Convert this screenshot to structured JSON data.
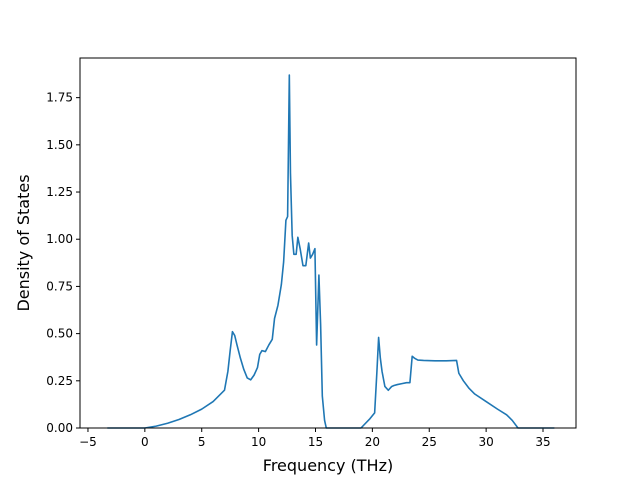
{
  "chart_data": {
    "type": "line",
    "xlabel": "Frequency (THz)",
    "ylabel": "Density of States",
    "xlim": [
      -5.7,
      37.9
    ],
    "ylim": [
      0,
      1.96
    ],
    "x_ticks": [
      -5,
      0,
      5,
      10,
      15,
      20,
      25,
      30,
      35
    ],
    "x_tick_labels": [
      "−5",
      "0",
      "5",
      "10",
      "15",
      "20",
      "25",
      "30",
      "35"
    ],
    "y_ticks": [
      0.0,
      0.25,
      0.5,
      0.75,
      1.0,
      1.25,
      1.5,
      1.75
    ],
    "y_tick_labels": [
      "0.00",
      "0.25",
      "0.50",
      "0.75",
      "1.00",
      "1.25",
      "1.50",
      "1.75"
    ],
    "grid": false,
    "line_color": "#1f77b4",
    "series": [
      {
        "x": [
          -3.3,
          0.0,
          1.0,
          2.0,
          3.0,
          4.0,
          5.0,
          6.0,
          7.0,
          7.3,
          7.5,
          7.7,
          7.9,
          8.1,
          8.4,
          8.7,
          9.0,
          9.3,
          9.6,
          9.9,
          10.1,
          10.3,
          10.6,
          10.9,
          11.2,
          11.4,
          11.7,
          12.0,
          12.2,
          12.4,
          12.55,
          12.7,
          12.8,
          12.95,
          13.1,
          13.3,
          13.45,
          13.65,
          13.9,
          14.15,
          14.4,
          14.55,
          14.75,
          14.95,
          15.1,
          15.3,
          15.45,
          15.6,
          15.8,
          15.95,
          16.1,
          16.3,
          17.0,
          19.0,
          19.8,
          20.2,
          20.4,
          20.55,
          20.7,
          20.85,
          21.1,
          21.4,
          21.7,
          21.9,
          22.2,
          22.6,
          23.0,
          23.3,
          23.5,
          23.7,
          24.0,
          24.5,
          25.5,
          26.5,
          27.4,
          27.6,
          28.0,
          28.5,
          29.0,
          30.0,
          31.0,
          31.8,
          32.3,
          32.8,
          36.0
        ],
        "y": [
          0.0,
          0.0,
          0.01,
          0.025,
          0.045,
          0.07,
          0.1,
          0.14,
          0.2,
          0.3,
          0.41,
          0.51,
          0.49,
          0.44,
          0.37,
          0.31,
          0.265,
          0.255,
          0.28,
          0.32,
          0.39,
          0.41,
          0.405,
          0.44,
          0.47,
          0.58,
          0.65,
          0.76,
          0.88,
          1.1,
          1.12,
          1.87,
          1.35,
          1.02,
          0.92,
          0.92,
          1.01,
          0.95,
          0.86,
          0.86,
          0.98,
          0.9,
          0.92,
          0.95,
          0.44,
          0.81,
          0.55,
          0.17,
          0.04,
          0.0,
          0.0,
          0.0,
          0.0,
          0.0,
          0.05,
          0.08,
          0.3,
          0.48,
          0.37,
          0.3,
          0.22,
          0.2,
          0.22,
          0.225,
          0.23,
          0.235,
          0.24,
          0.24,
          0.38,
          0.37,
          0.36,
          0.358,
          0.356,
          0.356,
          0.358,
          0.29,
          0.25,
          0.21,
          0.18,
          0.14,
          0.1,
          0.07,
          0.04,
          0.0,
          0.0
        ]
      }
    ]
  }
}
